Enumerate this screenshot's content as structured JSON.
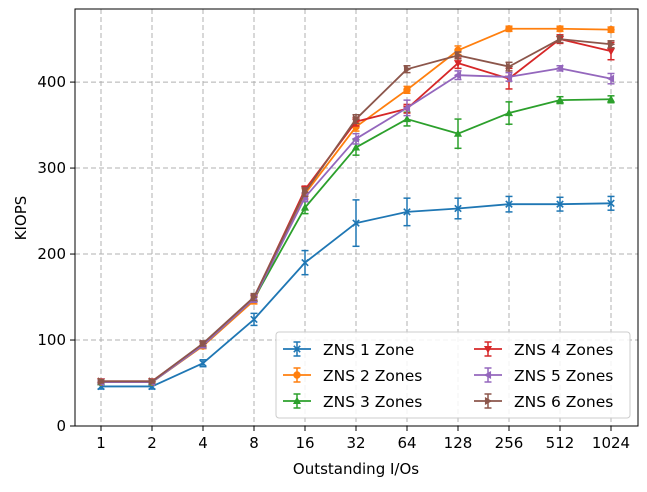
{
  "chart_data": {
    "type": "line",
    "xlabel": "Outstanding I/Os",
    "ylabel": "KIOPS",
    "categories": [
      "1",
      "2",
      "4",
      "8",
      "16",
      "32",
      "64",
      "128",
      "256",
      "512",
      "1024"
    ],
    "ylim": [
      0,
      485
    ],
    "yticks": [
      0,
      100,
      200,
      300,
      400
    ],
    "grid": true,
    "legend_position": "bottom-right",
    "legend_columns": 2,
    "series": [
      {
        "name": "ZNS 1 Zone",
        "color": "#1f77b4",
        "marker": "x",
        "values": [
          46,
          46,
          73,
          124,
          190,
          236,
          249,
          253,
          258,
          258,
          259
        ],
        "errors": [
          3,
          3,
          4,
          7,
          14,
          27,
          16,
          12,
          9,
          8,
          8
        ]
      },
      {
        "name": "ZNS 2 Zones",
        "color": "#ff7f0e",
        "marker": "o",
        "values": [
          51,
          51,
          93,
          146,
          270,
          348,
          391,
          437,
          462,
          462,
          461
        ],
        "errors": [
          2,
          2,
          3,
          4,
          6,
          5,
          4,
          5,
          3,
          3,
          3
        ]
      },
      {
        "name": "ZNS 3 Zones",
        "color": "#2ca02c",
        "marker": "^",
        "values": [
          51,
          51,
          94,
          148,
          254,
          324,
          357,
          340,
          364,
          379,
          380
        ],
        "errors": [
          2,
          2,
          3,
          4,
          7,
          9,
          8,
          17,
          13,
          4,
          4
        ]
      },
      {
        "name": "ZNS 4 Zones",
        "color": "#d62728",
        "marker": "v",
        "values": [
          52,
          52,
          95,
          149,
          275,
          354,
          369,
          422,
          404,
          450,
          436
        ],
        "errors": [
          2,
          2,
          3,
          4,
          4,
          5,
          5,
          6,
          12,
          5,
          10
        ]
      },
      {
        "name": "ZNS 5 Zones",
        "color": "#9467bd",
        "marker": "<",
        "values": [
          51,
          51,
          94,
          148,
          266,
          334,
          370,
          408,
          406,
          416,
          404
        ],
        "errors": [
          2,
          2,
          3,
          4,
          5,
          6,
          9,
          5,
          5,
          3,
          6
        ]
      },
      {
        "name": "ZNS 6 Zones",
        "color": "#8c564b",
        "marker": ">",
        "values": [
          52,
          52,
          96,
          150,
          272,
          357,
          415,
          431,
          418,
          450,
          444
        ],
        "errors": [
          2,
          2,
          3,
          4,
          5,
          5,
          4,
          4,
          5,
          4,
          4
        ]
      }
    ]
  }
}
